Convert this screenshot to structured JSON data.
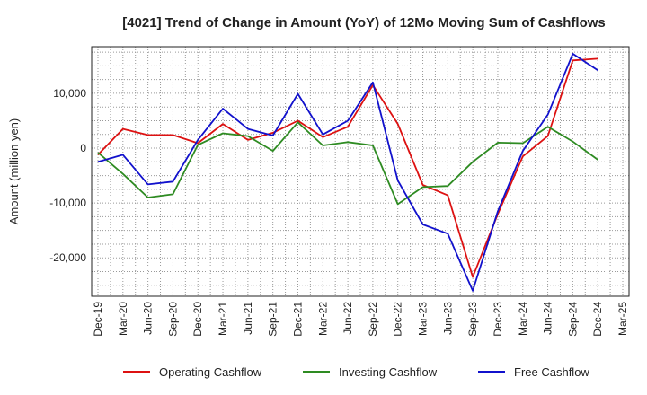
{
  "chart_data": {
    "type": "line",
    "title": "[4021]  Trend of Change in Amount (YoY) of 12Mo Moving Sum of Cashflows",
    "xlabel": "",
    "ylabel": "Amount (million yen)",
    "ylim": [
      -27000,
      18500
    ],
    "yticks": [
      10000,
      0,
      -10000,
      -20000
    ],
    "ytick_labels": [
      "10,000",
      "0",
      "-10,000",
      "-20,000"
    ],
    "categories": [
      "Dec-19",
      "Mar-20",
      "Jun-20",
      "Sep-20",
      "Dec-20",
      "Mar-21",
      "Jun-21",
      "Sep-21",
      "Dec-21",
      "Mar-22",
      "Jun-22",
      "Sep-22",
      "Dec-22",
      "Mar-23",
      "Jun-23",
      "Sep-23",
      "Dec-23",
      "Mar-24",
      "Jun-24",
      "Sep-24",
      "Dec-24",
      "Mar-25"
    ],
    "grid": true,
    "legend_position": "bottom",
    "series": [
      {
        "name": "Operating Cashflow",
        "color": "#dd1111",
        "values": [
          -1200,
          3500,
          2400,
          2400,
          900,
          4400,
          1500,
          2800,
          5000,
          2000,
          3900,
          11500,
          4400,
          -6700,
          -8600,
          -23500,
          -12000,
          -1500,
          2200,
          16000,
          16300,
          null
        ]
      },
      {
        "name": "Investing Cashflow",
        "color": "#2e8b22",
        "values": [
          -800,
          -4700,
          -9000,
          -8400,
          600,
          2700,
          2200,
          -500,
          4700,
          500,
          1100,
          500,
          -10200,
          -7100,
          -6900,
          -2500,
          1000,
          900,
          3900,
          1200,
          -2100,
          null
        ]
      },
      {
        "name": "Free Cashflow",
        "color": "#1111cc",
        "values": [
          -2500,
          -1200,
          -6600,
          -6100,
          1500,
          7200,
          3500,
          2300,
          9900,
          2500,
          5000,
          12000,
          -5900,
          -13900,
          -15600,
          -26000,
          -11500,
          -500,
          6100,
          17200,
          14200,
          null
        ]
      }
    ]
  }
}
